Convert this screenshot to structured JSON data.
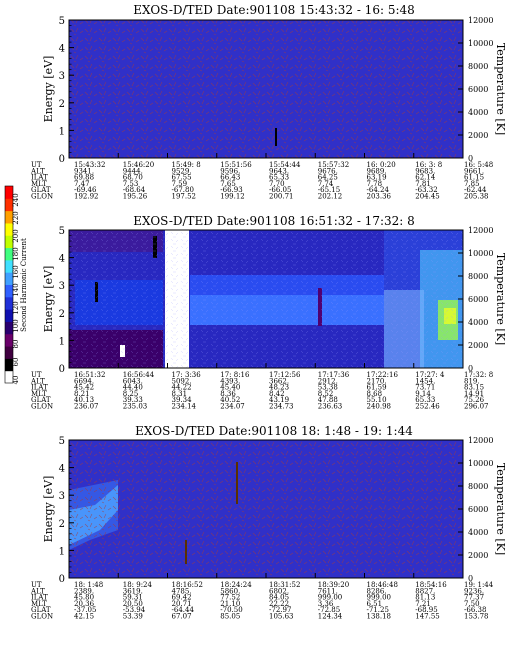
{
  "colorbar": {
    "label": "Second Harmonic Current",
    "ticks": [
      "40",
      "60",
      "80",
      "100",
      "120",
      "140",
      "160",
      "180",
      "200",
      "220",
      "240"
    ],
    "colors": [
      "#ffffff",
      "#000000",
      "#400040",
      "#6a006a",
      "#2a0070",
      "#1010b0",
      "#2030d8",
      "#3060ff",
      "#40a0ff",
      "#40e0ff",
      "#40ff80",
      "#c0ff00",
      "#ffff00",
      "#ffa000",
      "#ff3000",
      "#ff0000"
    ]
  },
  "chart_data": [
    {
      "type": "heatmap",
      "title": "EXOS-D/TED   Date:901108  15:43:32 - 16: 5:48",
      "ylabel": "Energy [eV]",
      "y2label": "Temperature [K]",
      "ylim": [
        0,
        5
      ],
      "y2lim": [
        0,
        12000
      ],
      "yticks": [
        "0",
        "1",
        "2",
        "3",
        "4",
        "5"
      ],
      "y2ticks": [
        "0",
        "2000",
        "4000",
        "6000",
        "8000",
        "10000",
        "12000"
      ],
      "rows": [
        "UT",
        "ALT",
        "ILAT",
        "MLT",
        "GLAT",
        "GLON"
      ],
      "columns": [
        [
          "15:43:32",
          "9341.",
          "69.88",
          "7.47",
          "-69.46",
          "192.92"
        ],
        [
          "15:46:20",
          "9444.",
          "68.70",
          "7.53",
          "-68.64",
          "195.26"
        ],
        [
          "15:49: 8",
          "9529.",
          "67.55",
          "7.59",
          "-67.80",
          "197.52"
        ],
        [
          "15:51:56",
          "9596.",
          "66.43",
          "7.65",
          "-66.93",
          "199.12"
        ],
        [
          "15:54:44",
          "9643.",
          "65.33",
          "7.70",
          "-66.05",
          "200.71"
        ],
        [
          "15:57:32",
          "9676.",
          "64.25",
          "7.74",
          "-65.15",
          "202.12"
        ],
        [
          "16: 0:20",
          "9689.",
          "63.19",
          "7.78",
          "-64.24",
          "203.36"
        ],
        [
          "16: 3: 8",
          "9683.",
          "62.14",
          "7.81",
          "-63.32",
          "204.45"
        ],
        [
          "16: 5:48",
          "9661.",
          "61.15",
          "7.85",
          "-62.44",
          "205.38"
        ]
      ]
    },
    {
      "type": "heatmap",
      "title": "EXOS-D/TED   Date:901108  16:51:32 - 17:32: 8",
      "ylabel": "Energy [eV]",
      "y2label": "Temperature [K]",
      "ylim": [
        0,
        5
      ],
      "y2lim": [
        0,
        12000
      ],
      "yticks": [
        "0",
        "1",
        "2",
        "3",
        "4",
        "5"
      ],
      "y2ticks": [
        "0",
        "2000",
        "4000",
        "6000",
        "8000",
        "10000",
        "12000"
      ],
      "rows": [
        "UT",
        "ALT",
        "ILAT",
        "MLT",
        "GLAT",
        "GLON"
      ],
      "columns": [
        [
          "16:51:32",
          "6694.",
          "45.42",
          "8.21",
          "40.13",
          "236.07"
        ],
        [
          "16:56:44",
          "6043.",
          "44.40",
          "8.25",
          "39.33",
          "235.03"
        ],
        [
          "17: 3:36",
          "5092.",
          "44.22",
          "8.31",
          "39.34",
          "234.14"
        ],
        [
          "17: 8:16",
          "4393.",
          "45.40",
          "8.36",
          "40.52",
          "234.07"
        ],
        [
          "17:12:56",
          "3662.",
          "48.23",
          "8.42",
          "43.19",
          "234.73"
        ],
        [
          "17:17:36",
          "2912.",
          "53.38",
          "8.52",
          "47.88",
          "236.63"
        ],
        [
          "17:22:16",
          "2170.",
          "61.59",
          "8.68",
          "55.10",
          "240.98"
        ],
        [
          "17:27: 4",
          "1454.",
          "73.71",
          "9.14",
          "65.33",
          "252.46"
        ],
        [
          "17:32: 8",
          "819.",
          "83.15",
          "14.91",
          "75.26",
          "296.07"
        ]
      ]
    },
    {
      "type": "heatmap",
      "title": "EXOS-D/TED   Date:901108  18: 1:48 - 19: 1:44",
      "ylabel": "Energy [eV]",
      "y2label": "Temperature [K]",
      "ylim": [
        0,
        5
      ],
      "y2lim": [
        0,
        12000
      ],
      "yticks": [
        "0",
        "1",
        "2",
        "3",
        "4",
        "5"
      ],
      "y2ticks": [
        "0",
        "2000",
        "4000",
        "6000",
        "8000",
        "10000",
        "12000"
      ],
      "rows": [
        "UT",
        "ALT",
        "ILAT",
        "MLT",
        "GLAT",
        "GLON"
      ],
      "columns": [
        [
          "18: 1:48",
          "2389.",
          "45.80",
          "20.36",
          "-37.05",
          "42.15"
        ],
        [
          "18: 9:24",
          "3619.",
          "59.31",
          "20.50",
          "-53.94",
          "53.39"
        ],
        [
          "18:16:52",
          "4785.",
          "69.42",
          "20.71",
          "-64.44",
          "67.07"
        ],
        [
          "18:24:24",
          "5860.",
          "77.52",
          "21.10",
          "-70.50",
          "85.05"
        ],
        [
          "18:31:52",
          "6802.",
          "84.05",
          "22.22",
          "-72.97",
          "105.63"
        ],
        [
          "18:39:20",
          "7611.",
          "999.00",
          "3.36",
          "-72.85",
          "124.34"
        ],
        [
          "18:46:48",
          "8286.",
          "999.00",
          "6.51",
          "-71.25",
          "138.18"
        ],
        [
          "18:54:16",
          "8827.",
          "81.13",
          "7.21",
          "-68.95",
          "147.55"
        ],
        [
          "19: 1:44",
          "9236.",
          "77.37",
          "7.50",
          "-66.38",
          "153.78"
        ]
      ]
    }
  ]
}
